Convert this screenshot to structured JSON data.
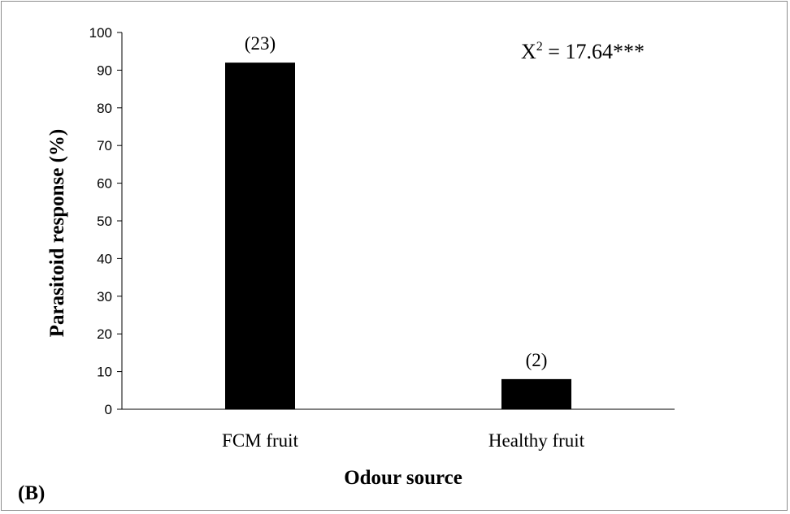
{
  "chart_data": {
    "type": "bar",
    "categories": [
      "FCM fruit",
      "Healthy fruit"
    ],
    "values": [
      92,
      8
    ],
    "data_labels": [
      "(23)",
      "(2)"
    ],
    "xlabel": "Odour source",
    "ylabel": "Parasitoid response (%)",
    "ylim": [
      0,
      100
    ],
    "yticks": [
      0,
      10,
      20,
      30,
      40,
      50,
      60,
      70,
      80,
      90,
      100
    ],
    "grid": false,
    "legend": "none",
    "bar_color": "#000000",
    "annotation": {
      "prefix": "X",
      "superscript": "2",
      "suffix": " = 17.64***"
    },
    "panel_label": "(B)"
  }
}
